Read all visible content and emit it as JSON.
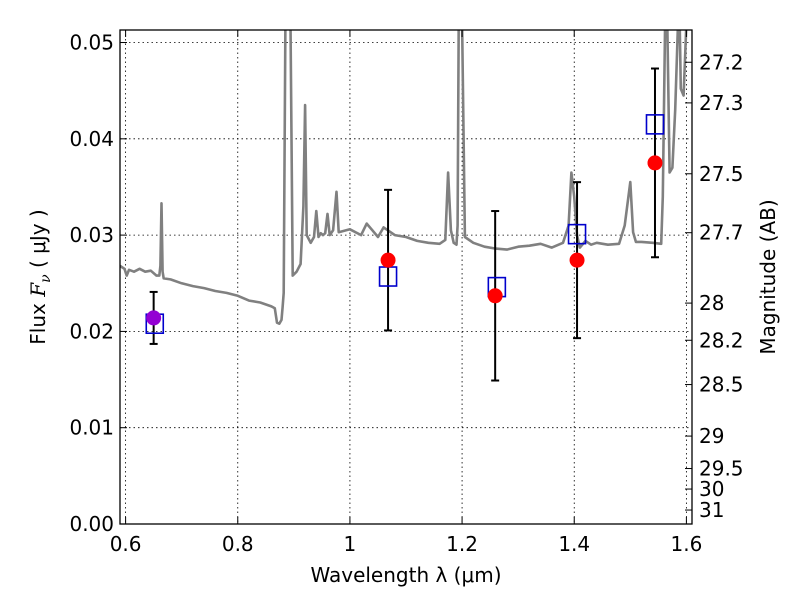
{
  "chart_data": {
    "type": "scatter",
    "title": "",
    "xlabel": "Wavelength  λ (μm)",
    "ylabel": {
      "prefix": "Flux  ",
      "symbol": "F",
      "subscript": "ν",
      "suffix": "  ( μJy )"
    },
    "y2label": "Magnitude (AB)",
    "xlim": [
      0.59,
      1.61
    ],
    "ylim": [
      0.0,
      0.0513
    ],
    "grid": true,
    "x_ticks": [
      0.6,
      0.8,
      1.0,
      1.2,
      1.4,
      1.6
    ],
    "x_tick_labels": [
      "0.6",
      "0.8",
      "1",
      "1.2",
      "1.4",
      "1.6"
    ],
    "y_ticks": [
      0.0,
      0.01,
      0.02,
      0.03,
      0.04,
      0.05
    ],
    "y_tick_labels": [
      "0.00",
      "0.01",
      "0.02",
      "0.03",
      "0.04",
      "0.05"
    ],
    "y2_ticks": [
      {
        "label": "27.2",
        "flux": 0.04795
      },
      {
        "label": "27.3",
        "flux": 0.04373
      },
      {
        "label": "27.5",
        "flux": 0.03637
      },
      {
        "label": "27.7",
        "flux": 0.03025
      },
      {
        "label": "28",
        "flux": 0.02294
      },
      {
        "label": "28.2",
        "flux": 0.01908
      },
      {
        "label": "28.5",
        "flux": 0.01448
      },
      {
        "label": "29",
        "flux": 0.00913
      },
      {
        "label": "29.5",
        "flux": 0.00576
      },
      {
        "label": "30",
        "flux": 0.00363
      },
      {
        "label": "31",
        "flux": 0.00145
      }
    ],
    "model_spectrum": {
      "color": "#808080",
      "x": [
        0.59,
        0.598,
        0.602,
        0.606,
        0.615,
        0.625,
        0.635,
        0.645,
        0.655,
        0.66,
        0.662,
        0.664,
        0.666,
        0.668,
        0.68,
        0.7,
        0.72,
        0.74,
        0.76,
        0.78,
        0.8,
        0.82,
        0.84,
        0.86,
        0.866,
        0.87,
        0.874,
        0.878,
        0.88,
        0.882,
        0.885,
        0.888,
        0.891,
        0.894,
        0.898,
        0.905,
        0.912,
        0.917,
        0.92,
        0.923,
        0.93,
        0.936,
        0.94,
        0.944,
        0.948,
        0.952,
        0.956,
        0.96,
        0.964,
        0.97,
        0.976,
        0.98,
        1.0,
        1.02,
        1.03,
        1.04,
        1.05,
        1.06,
        1.08,
        1.1,
        1.12,
        1.14,
        1.16,
        1.17,
        1.175,
        1.18,
        1.185,
        1.19,
        1.192,
        1.194,
        1.196,
        1.198,
        1.2,
        1.205,
        1.22,
        1.24,
        1.26,
        1.28,
        1.3,
        1.32,
        1.34,
        1.36,
        1.38,
        1.39,
        1.395,
        1.4,
        1.405,
        1.41,
        1.42,
        1.43,
        1.44,
        1.46,
        1.48,
        1.49,
        1.5,
        1.505,
        1.51,
        1.52,
        1.54,
        1.555,
        1.558,
        1.562,
        1.566,
        1.57,
        1.575,
        1.58,
        1.585,
        1.588,
        1.59,
        1.595,
        1.6
      ],
      "y": [
        0.0268,
        0.0265,
        0.0258,
        0.0264,
        0.0262,
        0.0265,
        0.0262,
        0.0263,
        0.0258,
        0.0258,
        0.0268,
        0.0333,
        0.0262,
        0.0255,
        0.0254,
        0.025,
        0.0247,
        0.0245,
        0.0242,
        0.024,
        0.0237,
        0.0232,
        0.023,
        0.0226,
        0.0224,
        0.0209,
        0.0208,
        0.0212,
        0.0225,
        0.024,
        0.052,
        0.052,
        0.052,
        0.052,
        0.0258,
        0.0262,
        0.027,
        0.033,
        0.0435,
        0.03,
        0.0292,
        0.0298,
        0.0325,
        0.0298,
        0.0302,
        0.03,
        0.0302,
        0.0322,
        0.03,
        0.0305,
        0.0345,
        0.0303,
        0.0306,
        0.03,
        0.0312,
        0.0305,
        0.0298,
        0.0308,
        0.03,
        0.0298,
        0.0294,
        0.0292,
        0.0291,
        0.0295,
        0.0365,
        0.0305,
        0.0292,
        0.029,
        0.031,
        0.052,
        0.052,
        0.052,
        0.052,
        0.0298,
        0.0292,
        0.0288,
        0.0286,
        0.0285,
        0.0288,
        0.0289,
        0.0291,
        0.0287,
        0.0292,
        0.031,
        0.0365,
        0.034,
        0.03,
        0.0287,
        0.0294,
        0.029,
        0.0292,
        0.029,
        0.0291,
        0.031,
        0.0355,
        0.0303,
        0.0293,
        0.0293,
        0.0292,
        0.0291,
        0.034,
        0.052,
        0.052,
        0.0365,
        0.037,
        0.043,
        0.052,
        0.052,
        0.0452,
        0.0445,
        0.052
      ]
    },
    "observed": {
      "color": "#ff0000",
      "points": [
        {
          "x": 0.65,
          "y": 0.0214,
          "yerr": 0.0027
        },
        {
          "x": 1.068,
          "y": 0.0274,
          "yerr": 0.0073
        },
        {
          "x": 1.259,
          "y": 0.0237,
          "yerr": 0.0088
        },
        {
          "x": 1.405,
          "y": 0.0274,
          "yerr": 0.0081
        },
        {
          "x": 1.544,
          "y": 0.0375,
          "yerr": 0.0098
        }
      ]
    },
    "first_point_color": "#9400d3",
    "model_photometry": {
      "color": "#0000cc",
      "points": [
        {
          "x": 0.652,
          "y": 0.0208
        },
        {
          "x": 1.068,
          "y": 0.0257
        },
        {
          "x": 1.262,
          "y": 0.0246
        },
        {
          "x": 1.405,
          "y": 0.0301
        },
        {
          "x": 1.544,
          "y": 0.0415
        }
      ]
    }
  }
}
